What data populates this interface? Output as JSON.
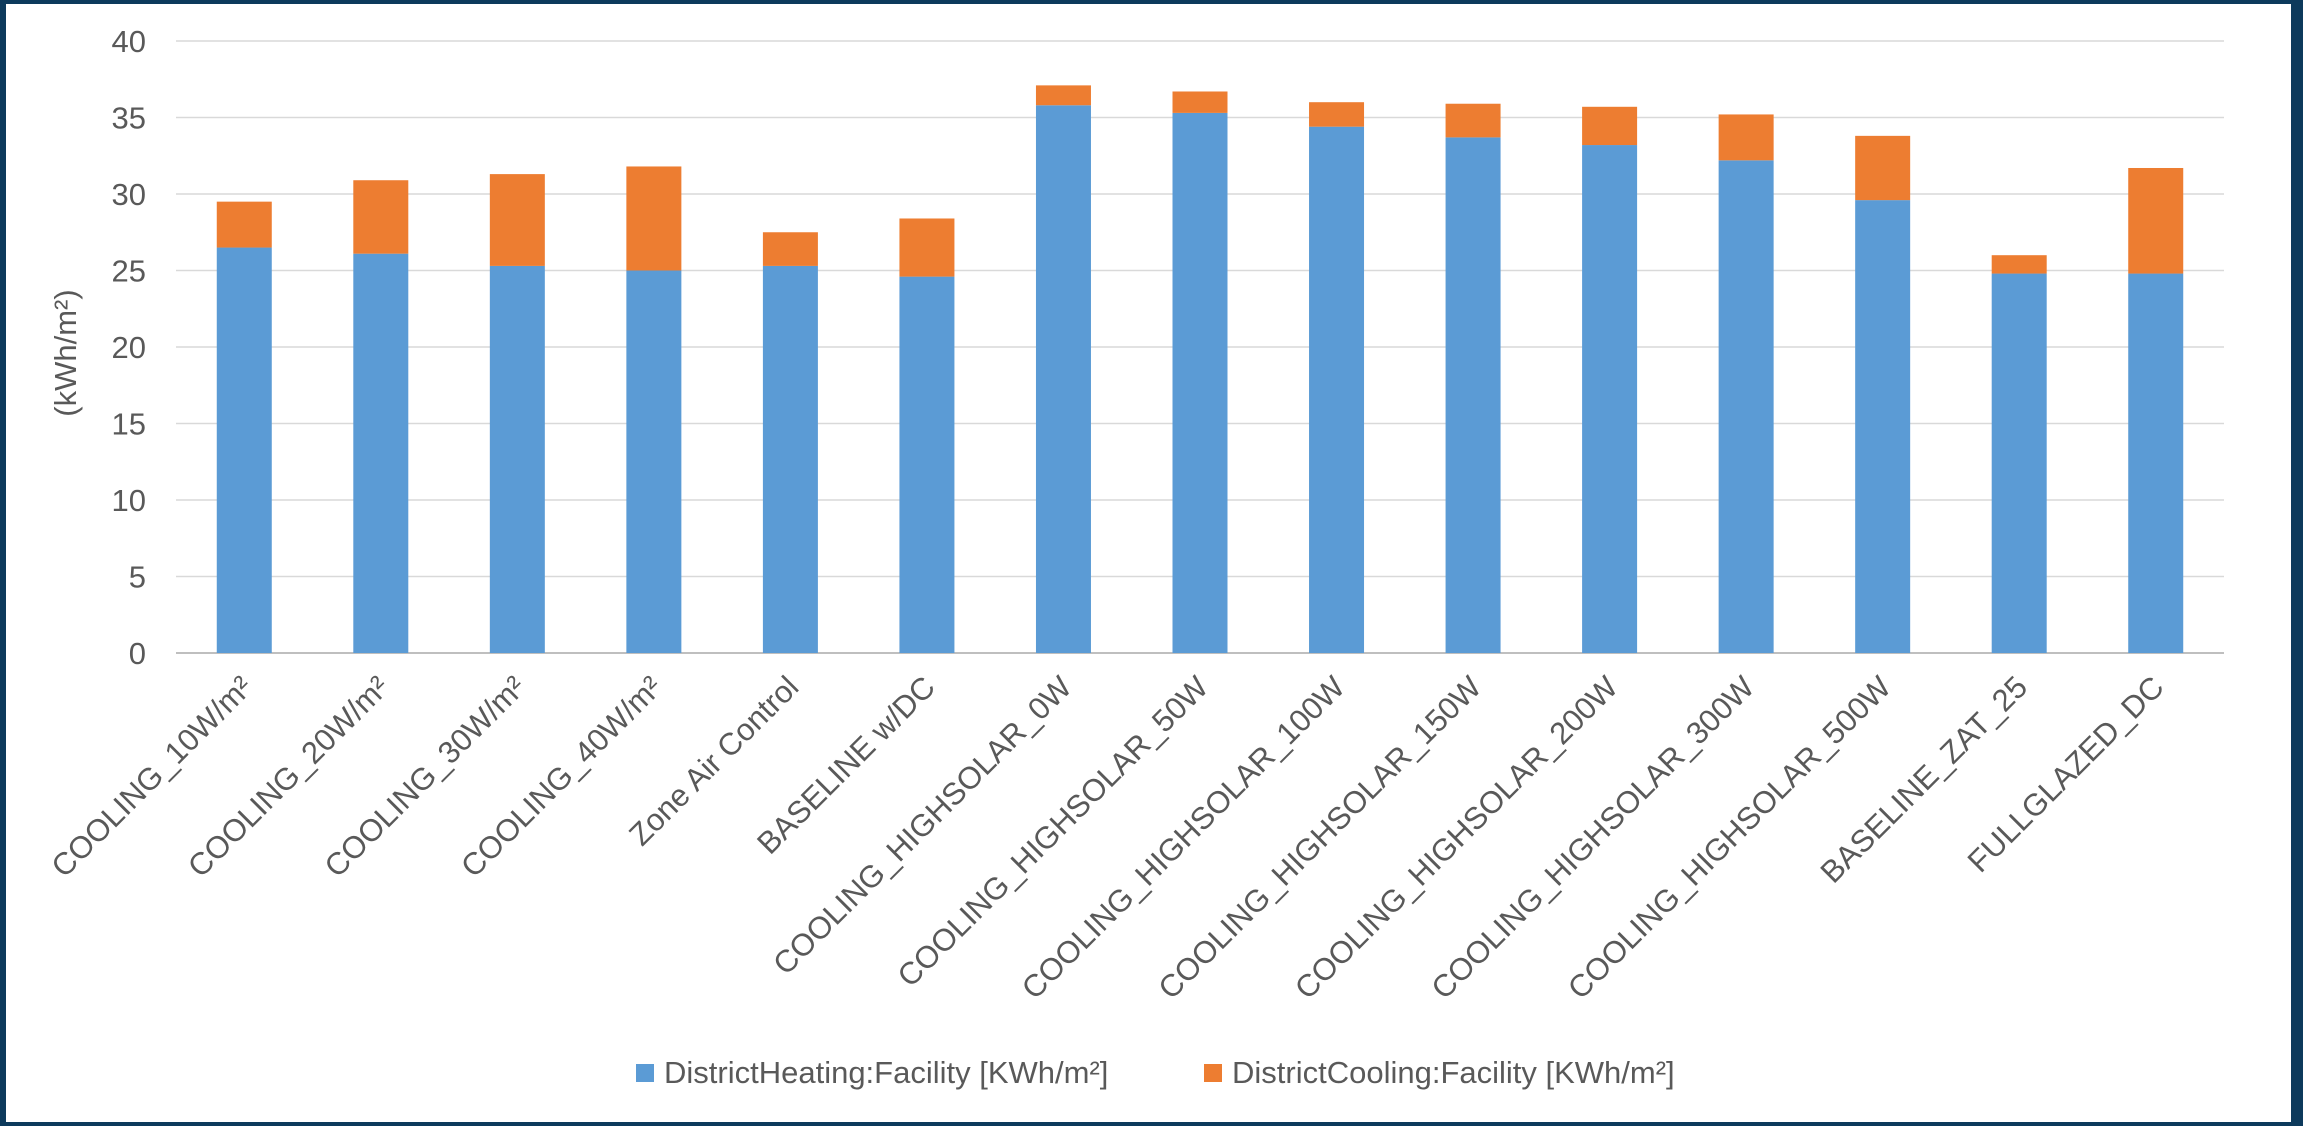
{
  "chart_data": {
    "type": "bar",
    "stacked": true,
    "title": "",
    "xlabel": "",
    "ylabel": "(kWh/m²)",
    "ylim": [
      0,
      40
    ],
    "yticks": [
      0,
      5,
      10,
      15,
      20,
      25,
      30,
      35,
      40
    ],
    "grid": true,
    "legend_position": "bottom",
    "categories": [
      "COOLING_10W/m²",
      "COOLING_20W/m²",
      "COOLING_30W/m²",
      "COOLING_40W/m²",
      "Zone Air Control",
      "BASELINE w/DC",
      "COOLING_HIGHSOLAR_0W",
      "COOLING_HIGHSOLAR_50W",
      "COOLING_HIGHSOLAR_100W",
      "COOLING_HIGHSOLAR_150W",
      "COOLING_HIGHSOLAR_200W",
      "COOLING_HIGHSOLAR_300W",
      "COOLING_HIGHSOLAR_500W",
      "BASELINE_ZAT_25",
      "FULLGLAZED_DC"
    ],
    "series": [
      {
        "name": "DistrictHeating:Facility [KWh/m²]",
        "color": "#5b9bd5",
        "values": [
          26.5,
          26.1,
          25.3,
          25.0,
          25.3,
          24.6,
          35.8,
          35.3,
          34.4,
          33.7,
          33.2,
          32.2,
          29.6,
          24.8,
          24.8
        ]
      },
      {
        "name": "DistrictCooling:Facility [KWh/m²]",
        "color": "#ed7d31",
        "values": [
          3.0,
          4.8,
          6.0,
          6.8,
          2.2,
          3.8,
          1.3,
          1.4,
          1.6,
          2.2,
          2.5,
          3.0,
          4.2,
          1.2,
          6.9
        ]
      }
    ]
  }
}
